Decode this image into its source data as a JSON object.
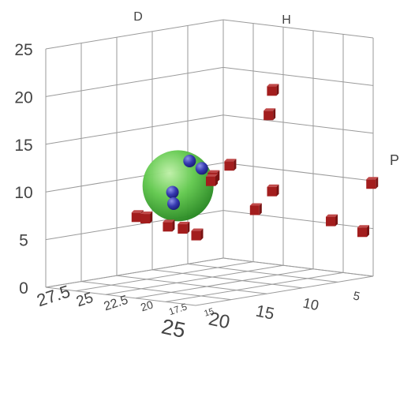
{
  "chart_data": {
    "type": "scatter",
    "projection": "3d",
    "grid": true,
    "axes": {
      "vertical": {
        "ticks": [
          "0",
          "5",
          "10",
          "15",
          "20",
          "25"
        ],
        "range": [
          0,
          25
        ]
      },
      "left_floor": {
        "ticks": [
          "5",
          "10",
          "15",
          "20",
          "25"
        ],
        "range": [
          5,
          25
        ]
      },
      "right_floor": {
        "ticks": [
          "27.5",
          "25",
          "22.5",
          "20",
          "17.5",
          "15"
        ],
        "range": [
          15,
          27.5
        ]
      }
    },
    "labels": {
      "left_wall": "D",
      "right_wall": "H",
      "right_side": "P"
    },
    "series": [
      {
        "marker": "cube",
        "color": "#a31d1d",
        "points": [
          {
            "x": 9,
            "y": 20.5,
            "z": 19.2
          },
          {
            "x": 6,
            "y": 23,
            "z": 15.8
          },
          {
            "x": 15,
            "y": 21,
            "z": 11
          },
          {
            "x": 14.8,
            "y": 21.3,
            "z": 10.5
          },
          {
            "x": 16.5,
            "y": 18.5,
            "z": 12.8
          },
          {
            "x": 14.8,
            "y": 16.2,
            "z": 10.2
          },
          {
            "x": 17,
            "y": 16,
            "z": 8.6
          },
          {
            "x": 12.5,
            "y": 13,
            "z": 7.2
          },
          {
            "x": 13,
            "y": 10,
            "z": 6.6
          },
          {
            "x": 6.5,
            "y": 11,
            "z": 8.7
          },
          {
            "x": 12,
            "y": 10,
            "z": 11.5
          },
          {
            "x": 16.5,
            "y": 25.5,
            "z": 6.2
          },
          {
            "x": 17.5,
            "y": 25.5,
            "z": 6.5
          },
          {
            "x": 16,
            "y": 24,
            "z": 5.5
          },
          {
            "x": 15,
            "y": 23.5,
            "z": 5.2
          },
          {
            "x": 15.5,
            "y": 22,
            "z": 4.8
          }
        ]
      },
      {
        "marker": "sphere",
        "color": "#2a2e9a",
        "points": [
          {
            "x": 13.5,
            "y": 23,
            "z": 11.4
          },
          {
            "x": 14.2,
            "y": 23.5,
            "z": 12.2
          },
          {
            "x": 15.6,
            "y": 23.8,
            "z": 7.9
          },
          {
            "x": 16.4,
            "y": 23.3,
            "z": 9.3
          }
        ]
      },
      {
        "marker": "sphere",
        "color": "#3fae3a",
        "points": [
          {
            "x": 15.5,
            "y": 23.5,
            "z": 9.8
          }
        ]
      }
    ]
  }
}
